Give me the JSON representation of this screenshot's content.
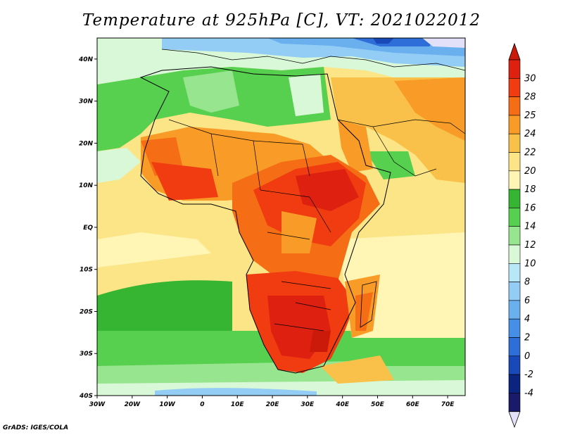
{
  "title": "Temperature at 925hPa [C], VT: 2021022012",
  "credit": "GrADS: IGES/COLA",
  "map": {
    "lon_range": [
      -30,
      75
    ],
    "lat_range": [
      -40,
      45
    ],
    "lon_ticks": [
      {
        "value": -30,
        "label": "30W"
      },
      {
        "value": -20,
        "label": "20W"
      },
      {
        "value": -10,
        "label": "10W"
      },
      {
        "value": 0,
        "label": "0"
      },
      {
        "value": 10,
        "label": "10E"
      },
      {
        "value": 20,
        "label": "20E"
      },
      {
        "value": 30,
        "label": "30E"
      },
      {
        "value": 40,
        "label": "40E"
      },
      {
        "value": 50,
        "label": "50E"
      },
      {
        "value": 60,
        "label": "60E"
      },
      {
        "value": 70,
        "label": "70E"
      }
    ],
    "lat_ticks": [
      {
        "value": 40,
        "label": "40N"
      },
      {
        "value": 30,
        "label": "30N"
      },
      {
        "value": 20,
        "label": "20N"
      },
      {
        "value": 10,
        "label": "10N"
      },
      {
        "value": 0,
        "label": "EQ"
      },
      {
        "value": -10,
        "label": "10S"
      },
      {
        "value": -20,
        "label": "20S"
      },
      {
        "value": -30,
        "label": "30S"
      },
      {
        "value": -40,
        "label": "40S"
      }
    ]
  },
  "colorbar": {
    "labels": [
      "30",
      "28",
      "25",
      "24",
      "22",
      "20",
      "18",
      "16",
      "14",
      "12",
      "10",
      "8",
      "6",
      "4",
      "2",
      "0",
      "-2",
      "-4"
    ],
    "colors": [
      "#dd2010",
      "#f03c10",
      "#f56d14",
      "#f89b27",
      "#f9c149",
      "#fbe586",
      "#fff5b4",
      "#35b532",
      "#57d04f",
      "#97e58e",
      "#d8f8d8",
      "#b8e8f8",
      "#93cdf5",
      "#6bb0ee",
      "#4590e6",
      "#2d6ed8",
      "#1948b8",
      "#0a2480",
      "#1a1a6a"
    ],
    "top_color": "#cc1a0a",
    "bottom_color": "#e3e0fa"
  }
}
